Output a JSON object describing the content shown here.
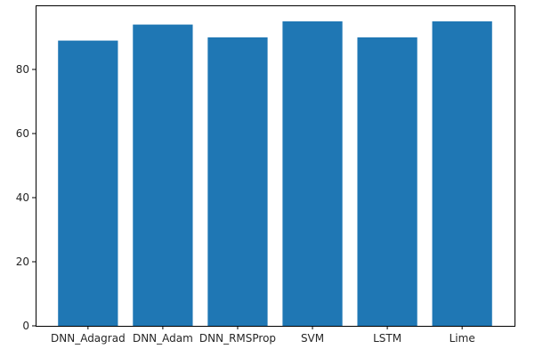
{
  "chart_data": {
    "type": "bar",
    "title": "",
    "xlabel": "",
    "ylabel": "",
    "categories": [
      "DNN_Adagrad",
      "DNN_Adam",
      "DNN_RMSProp",
      "SVM",
      "LSTM",
      "Lime"
    ],
    "values": [
      89,
      94,
      90,
      95,
      90,
      95
    ],
    "ylim": [
      0,
      100
    ],
    "yticks": [
      0,
      20,
      40,
      60,
      80
    ],
    "ytick_labels": [
      "0",
      "20",
      "40",
      "60",
      "80"
    ],
    "grid": false,
    "legend": "none",
    "bar_color": "#1f77b4",
    "axis_color": "#000000"
  }
}
